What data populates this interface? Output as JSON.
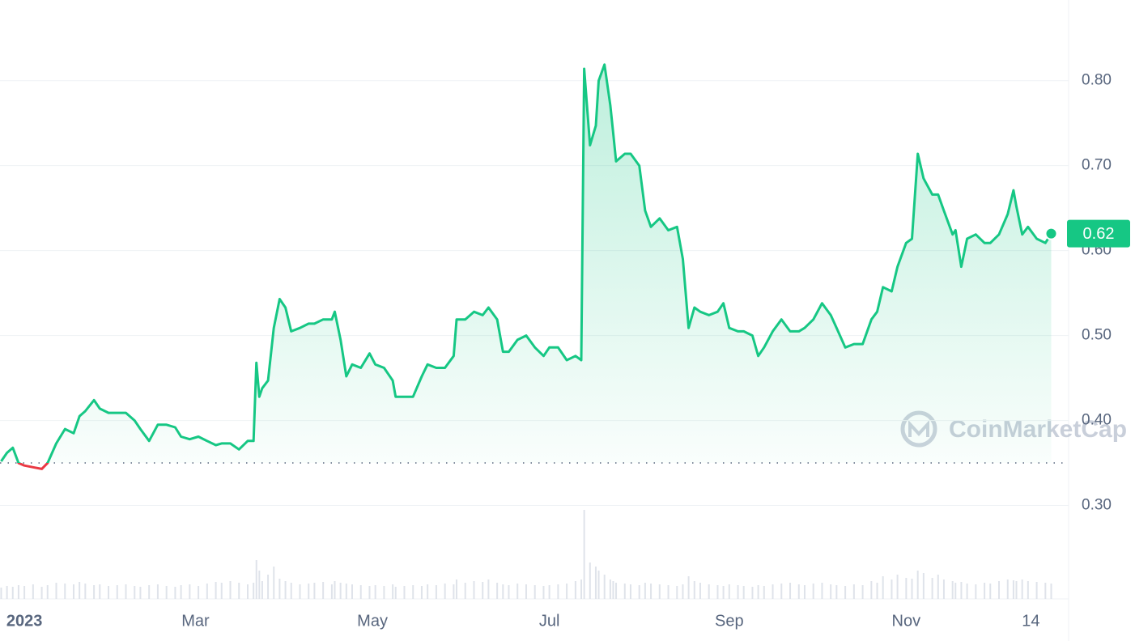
{
  "chart_data": {
    "type": "line",
    "x": [
      -8,
      -6,
      -4,
      -2,
      0,
      3,
      6,
      8,
      11,
      14,
      17,
      19,
      21,
      24,
      26,
      29,
      32,
      35,
      38,
      40,
      43,
      46,
      49,
      52,
      54,
      57,
      60,
      63,
      66,
      68,
      71,
      74,
      77,
      79,
      80,
      81,
      82,
      84,
      86,
      88,
      90,
      92,
      95,
      98,
      100,
      103,
      106,
      107,
      109,
      111,
      113,
      116,
      119,
      121,
      124,
      127,
      128,
      131,
      134,
      137,
      139,
      142,
      145,
      148,
      149,
      152,
      155,
      158,
      160,
      163,
      165,
      167,
      170,
      173,
      176,
      179,
      181,
      184,
      187,
      190,
      192,
      193,
      195,
      197,
      198,
      200,
      202,
      203,
      204,
      207,
      209,
      212,
      214,
      216,
      219,
      222,
      225,
      227,
      229,
      231,
      233,
      236,
      239,
      241,
      243,
      246,
      248,
      251,
      253,
      255,
      258,
      261,
      264,
      267,
      269,
      272,
      275,
      278,
      280,
      283,
      286,
      289,
      292,
      294,
      296,
      299,
      301,
      304,
      306,
      308,
      310,
      313,
      315,
      317,
      320,
      321,
      323,
      325,
      328,
      331,
      333,
      336,
      339,
      341,
      342,
      344,
      346,
      349,
      352,
      354
    ],
    "series": [
      {
        "color": "#16c784",
        "down_color": "#ea3943",
        "values": [
          0.352,
          0.362,
          0.368,
          0.35,
          0.347,
          0.345,
          0.343,
          0.35,
          0.373,
          0.39,
          0.385,
          0.405,
          0.411,
          0.424,
          0.414,
          0.409,
          0.409,
          0.409,
          0.4,
          0.39,
          0.376,
          0.395,
          0.395,
          0.392,
          0.381,
          0.378,
          0.381,
          0.376,
          0.371,
          0.373,
          0.373,
          0.366,
          0.376,
          0.376,
          0.468,
          0.428,
          0.438,
          0.447,
          0.509,
          0.543,
          0.533,
          0.505,
          0.509,
          0.514,
          0.514,
          0.519,
          0.519,
          0.528,
          0.495,
          0.452,
          0.466,
          0.462,
          0.479,
          0.466,
          0.462,
          0.447,
          0.428,
          0.428,
          0.428,
          0.452,
          0.466,
          0.462,
          0.462,
          0.476,
          0.519,
          0.519,
          0.528,
          0.524,
          0.533,
          0.519,
          0.481,
          0.481,
          0.495,
          0.5,
          0.486,
          0.476,
          0.486,
          0.486,
          0.471,
          0.476,
          0.471,
          0.814,
          0.724,
          0.747,
          0.8,
          0.819,
          0.771,
          0.738,
          0.705,
          0.714,
          0.714,
          0.7,
          0.647,
          0.628,
          0.638,
          0.624,
          0.628,
          0.59,
          0.509,
          0.533,
          0.528,
          0.524,
          0.528,
          0.538,
          0.509,
          0.505,
          0.505,
          0.5,
          0.476,
          0.486,
          0.505,
          0.519,
          0.505,
          0.505,
          0.509,
          0.519,
          0.538,
          0.524,
          0.509,
          0.486,
          0.49,
          0.49,
          0.519,
          0.528,
          0.557,
          0.552,
          0.581,
          0.609,
          0.614,
          0.714,
          0.685,
          0.666,
          0.666,
          0.647,
          0.619,
          0.624,
          0.581,
          0.614,
          0.619,
          0.609,
          0.609,
          0.619,
          0.643,
          0.671,
          0.652,
          0.619,
          0.628,
          0.614,
          0.609,
          0.62
        ]
      }
    ],
    "volume": [
      14,
      16,
      15,
      17,
      16,
      18,
      15,
      17,
      20,
      19,
      18,
      21,
      19,
      17,
      18,
      16,
      17,
      18,
      16,
      15,
      17,
      18,
      16,
      15,
      17,
      18,
      16,
      19,
      21,
      20,
      22,
      20,
      18,
      20,
      48,
      35,
      22,
      30,
      40,
      25,
      22,
      20,
      18,
      19,
      20,
      21,
      18,
      22,
      20,
      19,
      18,
      17,
      16,
      17,
      16,
      18,
      15,
      16,
      17,
      16,
      18,
      17,
      19,
      18,
      24,
      20,
      22,
      21,
      24,
      20,
      18,
      17,
      19,
      18,
      17,
      16,
      17,
      18,
      19,
      22,
      24,
      110,
      45,
      40,
      35,
      30,
      24,
      22,
      20,
      19,
      18,
      17,
      20,
      19,
      18,
      17,
      16,
      18,
      28,
      22,
      20,
      18,
      17,
      16,
      18,
      17,
      16,
      15,
      17,
      16,
      18,
      19,
      20,
      18,
      17,
      19,
      20,
      18,
      17,
      16,
      18,
      17,
      22,
      20,
      28,
      24,
      30,
      26,
      25,
      35,
      32,
      26,
      30,
      24,
      22,
      20,
      21,
      19,
      18,
      20,
      19,
      22,
      24,
      23,
      22,
      24,
      22,
      21,
      20,
      19
    ],
    "reference_line": 0.35,
    "last_price_label": "0.62",
    "watermark": "CoinMarketCap",
    "xlim": [
      -8.4,
      360
    ],
    "xticks": [
      {
        "value": 0,
        "label": "2023"
      },
      {
        "value": 59,
        "label": "Mar"
      },
      {
        "value": 120,
        "label": "May"
      },
      {
        "value": 181,
        "label": "Jul"
      },
      {
        "value": 243,
        "label": "Sep"
      },
      {
        "value": 304,
        "label": "Nov"
      },
      {
        "value": 347,
        "label": "14"
      }
    ],
    "ylim": [
      0.19,
      0.895
    ],
    "yticks": [
      {
        "value": 0.3,
        "label": "0.30"
      },
      {
        "value": 0.4,
        "label": "0.40"
      },
      {
        "value": 0.5,
        "label": "0.50"
      },
      {
        "value": 0.6,
        "label": "0.60"
      },
      {
        "value": 0.7,
        "label": "0.70"
      },
      {
        "value": 0.8,
        "label": "0.80"
      }
    ],
    "grid": true
  }
}
